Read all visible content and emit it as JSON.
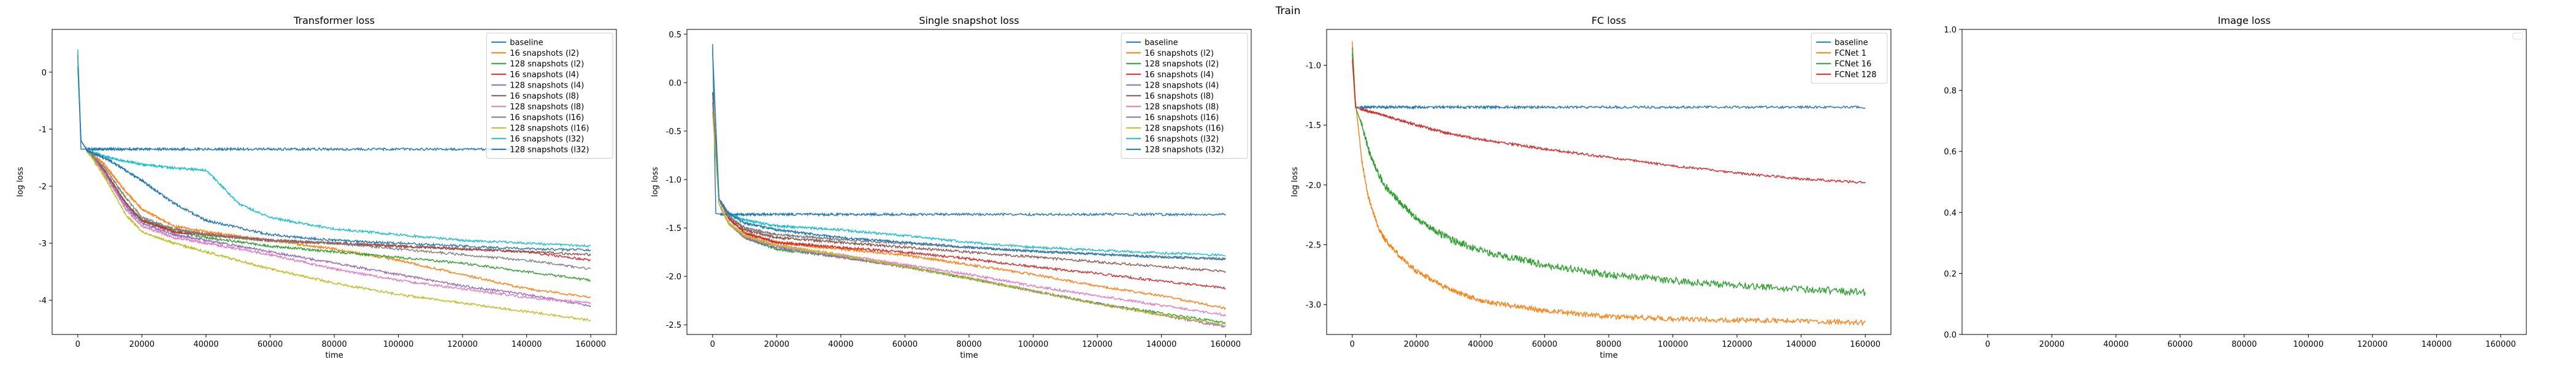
{
  "figure": {
    "suptitle": "Train"
  },
  "chart_data": [
    {
      "type": "line",
      "title": "Transformer loss",
      "xlabel": "time",
      "ylabel": "log loss",
      "xlim": [
        -8000,
        168000
      ],
      "ylim": [
        -4.6,
        0.75
      ],
      "xticks": [
        0,
        20000,
        40000,
        60000,
        80000,
        100000,
        120000,
        140000,
        160000
      ],
      "yticks": [
        -4,
        -3,
        -2,
        -1,
        0
      ],
      "grid": false,
      "legend": "top-right",
      "series": [
        {
          "name": "baseline",
          "color": "#1f77b4",
          "x": [
            0,
            1000,
            3000,
            160000
          ],
          "y": [
            0.3,
            -1.35,
            -1.35,
            -1.35
          ]
        },
        {
          "name": "16 snapshots (l2)",
          "color": "#ff7f0e",
          "x": [
            0,
            1000,
            3000,
            8000,
            15000,
            20000,
            30000,
            40000,
            60000,
            80000,
            100000,
            120000,
            140000,
            160000
          ],
          "y": [
            0.35,
            -1.2,
            -1.38,
            -1.6,
            -2.1,
            -2.4,
            -2.7,
            -2.8,
            -2.95,
            -3.1,
            -3.3,
            -3.55,
            -3.8,
            -3.95
          ]
        },
        {
          "name": "128 snapshots (l2)",
          "color": "#2ca02c",
          "x": [
            0,
            1000,
            3000,
            8000,
            15000,
            20000,
            30000,
            40000,
            60000,
            80000,
            100000,
            120000,
            140000,
            160000
          ],
          "y": [
            0.3,
            -1.2,
            -1.38,
            -1.7,
            -2.3,
            -2.6,
            -2.8,
            -2.9,
            -3.05,
            -3.15,
            -3.25,
            -3.35,
            -3.5,
            -3.65
          ]
        },
        {
          "name": "16 snapshots (l4)",
          "color": "#d62728",
          "x": [
            0,
            1000,
            3000,
            8000,
            15000,
            20000,
            30000,
            40000,
            60000,
            80000,
            100000,
            120000,
            140000,
            160000
          ],
          "y": [
            0.2,
            -1.2,
            -1.38,
            -1.7,
            -2.3,
            -2.6,
            -2.8,
            -2.85,
            -2.95,
            -3.0,
            -3.05,
            -3.1,
            -3.15,
            -3.3
          ]
        },
        {
          "name": "128 snapshots (l4)",
          "color": "#9467bd",
          "x": [
            0,
            1000,
            3000,
            8000,
            15000,
            20000,
            30000,
            40000,
            60000,
            80000,
            100000,
            120000,
            140000,
            160000
          ],
          "y": [
            0.25,
            -1.2,
            -1.38,
            -1.75,
            -2.35,
            -2.65,
            -2.85,
            -2.95,
            -3.15,
            -3.35,
            -3.55,
            -3.75,
            -3.9,
            -4.1
          ]
        },
        {
          "name": "16 snapshots (l8)",
          "color": "#8c564b",
          "x": [
            0,
            1000,
            3000,
            8000,
            15000,
            20000,
            30000,
            40000,
            60000,
            80000,
            100000,
            120000,
            140000,
            160000
          ],
          "y": [
            0.2,
            -1.2,
            -1.38,
            -1.7,
            -2.3,
            -2.6,
            -2.75,
            -2.85,
            -2.95,
            -3.0,
            -3.05,
            -3.1,
            -3.15,
            -3.2
          ]
        },
        {
          "name": "128 snapshots (l8)",
          "color": "#e377c2",
          "x": [
            0,
            1000,
            3000,
            8000,
            15000,
            20000,
            30000,
            40000,
            60000,
            80000,
            100000,
            120000,
            140000,
            160000
          ],
          "y": [
            0.2,
            -1.2,
            -1.38,
            -1.75,
            -2.4,
            -2.7,
            -2.9,
            -3.0,
            -3.2,
            -3.45,
            -3.65,
            -3.8,
            -3.95,
            -4.05
          ]
        },
        {
          "name": "16 snapshots (l16)",
          "color": "#7f7f7f",
          "x": [
            0,
            1000,
            3000,
            8000,
            15000,
            20000,
            30000,
            40000,
            60000,
            80000,
            100000,
            120000,
            140000,
            160000
          ],
          "y": [
            0.2,
            -1.2,
            -1.38,
            -1.65,
            -2.2,
            -2.55,
            -2.75,
            -2.85,
            -2.95,
            -3.0,
            -3.1,
            -3.2,
            -3.3,
            -3.45
          ]
        },
        {
          "name": "128 snapshots (l16)",
          "color": "#bcbd22",
          "x": [
            0,
            1000,
            3000,
            8000,
            15000,
            20000,
            30000,
            40000,
            60000,
            80000,
            100000,
            120000,
            140000,
            160000
          ],
          "y": [
            0.2,
            -1.2,
            -1.38,
            -1.8,
            -2.5,
            -2.8,
            -3.0,
            -3.15,
            -3.45,
            -3.7,
            -3.9,
            -4.05,
            -4.2,
            -4.35
          ]
        },
        {
          "name": "16 snapshots (l32)",
          "color": "#17becf",
          "x": [
            0,
            1000,
            3000,
            10000,
            20000,
            30000,
            40000,
            45000,
            50000,
            60000,
            80000,
            100000,
            120000,
            140000,
            160000
          ],
          "y": [
            0.4,
            -1.2,
            -1.38,
            -1.5,
            -1.62,
            -1.68,
            -1.72,
            -2.0,
            -2.3,
            -2.55,
            -2.75,
            -2.85,
            -2.95,
            -3.0,
            -3.05
          ]
        },
        {
          "name": "128 snapshots (l32)",
          "color": "#1f77b4",
          "x": [
            0,
            1000,
            3000,
            10000,
            20000,
            30000,
            40000,
            60000,
            80000,
            100000,
            120000,
            140000,
            160000
          ],
          "y": [
            0.1,
            -1.2,
            -1.38,
            -1.55,
            -1.9,
            -2.3,
            -2.6,
            -2.85,
            -2.95,
            -3.0,
            -3.05,
            -3.1,
            -3.12
          ]
        }
      ]
    },
    {
      "type": "line",
      "title": "Single snapshot loss",
      "xlabel": "time",
      "ylabel": "log loss",
      "xlim": [
        -8000,
        168000
      ],
      "ylim": [
        -2.6,
        0.55
      ],
      "xticks": [
        0,
        20000,
        40000,
        60000,
        80000,
        100000,
        120000,
        140000,
        160000
      ],
      "yticks": [
        -2.5,
        -2.0,
        -1.5,
        -1.0,
        -0.5,
        0.0,
        0.5
      ],
      "grid": false,
      "legend": "top-right",
      "series": [
        {
          "name": "baseline",
          "color": "#1f77b4",
          "x": [
            0,
            1000,
            3000,
            160000
          ],
          "y": [
            0.4,
            -1.35,
            -1.36,
            -1.36
          ]
        },
        {
          "name": "16 snapshots (l2)",
          "color": "#ff7f0e",
          "x": [
            0,
            2000,
            5000,
            10000,
            20000,
            40000,
            60000,
            80000,
            100000,
            120000,
            140000,
            160000
          ],
          "y": [
            -0.1,
            -1.2,
            -1.4,
            -1.55,
            -1.65,
            -1.72,
            -1.78,
            -1.88,
            -1.98,
            -2.1,
            -2.2,
            -2.33
          ]
        },
        {
          "name": "128 snapshots (l2)",
          "color": "#2ca02c",
          "x": [
            0,
            2000,
            5000,
            10000,
            20000,
            40000,
            60000,
            80000,
            100000,
            120000,
            140000,
            160000
          ],
          "y": [
            -0.2,
            -1.25,
            -1.45,
            -1.6,
            -1.72,
            -1.8,
            -1.9,
            -2.02,
            -2.15,
            -2.28,
            -2.38,
            -2.48
          ]
        },
        {
          "name": "16 snapshots (l4)",
          "color": "#d62728",
          "x": [
            0,
            2000,
            5000,
            10000,
            20000,
            40000,
            60000,
            80000,
            100000,
            120000,
            140000,
            160000
          ],
          "y": [
            -0.1,
            -1.2,
            -1.4,
            -1.55,
            -1.65,
            -1.7,
            -1.75,
            -1.82,
            -1.9,
            -1.97,
            -2.05,
            -2.12
          ]
        },
        {
          "name": "128 snapshots (l4)",
          "color": "#9467bd",
          "x": [
            0,
            2000,
            5000,
            10000,
            20000,
            40000,
            60000,
            80000,
            100000,
            120000,
            140000,
            160000
          ],
          "y": [
            -0.3,
            -1.25,
            -1.45,
            -1.6,
            -1.7,
            -1.8,
            -1.9,
            -2.02,
            -2.15,
            -2.28,
            -2.4,
            -2.52
          ]
        },
        {
          "name": "16 snapshots (l8)",
          "color": "#8c564b",
          "x": [
            0,
            2000,
            5000,
            10000,
            20000,
            40000,
            60000,
            80000,
            100000,
            120000,
            140000,
            160000
          ],
          "y": [
            -0.1,
            -1.2,
            -1.38,
            -1.52,
            -1.6,
            -1.65,
            -1.7,
            -1.75,
            -1.8,
            -1.85,
            -1.9,
            -1.95
          ]
        },
        {
          "name": "128 snapshots (l8)",
          "color": "#e377c2",
          "x": [
            0,
            2000,
            5000,
            10000,
            20000,
            40000,
            60000,
            80000,
            100000,
            120000,
            140000,
            160000
          ],
          "y": [
            -0.2,
            -1.25,
            -1.45,
            -1.58,
            -1.68,
            -1.78,
            -1.88,
            -1.98,
            -2.1,
            -2.2,
            -2.3,
            -2.4
          ]
        },
        {
          "name": "16 snapshots (l16)",
          "color": "#7f7f7f",
          "x": [
            0,
            2000,
            5000,
            10000,
            20000,
            40000,
            60000,
            80000,
            100000,
            120000,
            140000,
            160000
          ],
          "y": [
            -0.2,
            -1.2,
            -1.38,
            -1.5,
            -1.57,
            -1.62,
            -1.66,
            -1.7,
            -1.74,
            -1.77,
            -1.8,
            -1.82
          ]
        },
        {
          "name": "128 snapshots (l16)",
          "color": "#bcbd22",
          "x": [
            0,
            2000,
            5000,
            10000,
            20000,
            40000,
            60000,
            80000,
            100000,
            120000,
            140000,
            160000
          ],
          "y": [
            -0.3,
            -1.25,
            -1.45,
            -1.58,
            -1.68,
            -1.78,
            -1.9,
            -2.02,
            -2.15,
            -2.28,
            -2.4,
            -2.5
          ]
        },
        {
          "name": "16 snapshots (l32)",
          "color": "#17becf",
          "x": [
            0,
            2000,
            5000,
            10000,
            20000,
            40000,
            60000,
            80000,
            100000,
            120000,
            140000,
            160000
          ],
          "y": [
            0.3,
            -1.2,
            -1.35,
            -1.42,
            -1.48,
            -1.52,
            -1.58,
            -1.65,
            -1.7,
            -1.73,
            -1.76,
            -1.78
          ]
        },
        {
          "name": "128 snapshots (l32)",
          "color": "#1f77b4",
          "x": [
            0,
            2000,
            5000,
            10000,
            20000,
            40000,
            60000,
            80000,
            100000,
            120000,
            140000,
            160000
          ],
          "y": [
            0.35,
            -1.2,
            -1.35,
            -1.45,
            -1.52,
            -1.6,
            -1.65,
            -1.7,
            -1.74,
            -1.77,
            -1.8,
            -1.82
          ]
        }
      ]
    },
    {
      "type": "line",
      "title": "FC loss",
      "xlabel": "time",
      "ylabel": "log loss",
      "xlim": [
        -8000,
        168000
      ],
      "ylim": [
        -3.25,
        -0.7
      ],
      "xticks": [
        0,
        20000,
        40000,
        60000,
        80000,
        100000,
        120000,
        140000,
        160000
      ],
      "yticks": [
        -3.0,
        -2.5,
        -2.0,
        -1.5,
        -1.0
      ],
      "grid": false,
      "legend": "top-right",
      "series": [
        {
          "name": "baseline",
          "color": "#1f77b4",
          "x": [
            0,
            1000,
            3000,
            160000
          ],
          "y": [
            -0.9,
            -1.35,
            -1.35,
            -1.35
          ]
        },
        {
          "name": "FCNet 1",
          "color": "#ff7f0e",
          "x": [
            0,
            1000,
            3000,
            5000,
            8000,
            10000,
            15000,
            20000,
            30000,
            40000,
            60000,
            80000,
            100000,
            120000,
            140000,
            160000
          ],
          "y": [
            -0.8,
            -1.3,
            -1.8,
            -2.1,
            -2.35,
            -2.45,
            -2.6,
            -2.72,
            -2.87,
            -2.97,
            -3.05,
            -3.1,
            -3.12,
            -3.13,
            -3.14,
            -3.15
          ]
        },
        {
          "name": "FCNet 16",
          "color": "#2ca02c",
          "x": [
            0,
            1000,
            3000,
            5000,
            8000,
            10000,
            15000,
            20000,
            30000,
            40000,
            60000,
            80000,
            100000,
            120000,
            140000,
            160000
          ],
          "y": [
            -0.85,
            -1.35,
            -1.5,
            -1.7,
            -1.9,
            -2.0,
            -2.15,
            -2.28,
            -2.45,
            -2.55,
            -2.67,
            -2.75,
            -2.8,
            -2.84,
            -2.87,
            -2.9
          ]
        },
        {
          "name": "FCNet 128",
          "color": "#d62728",
          "x": [
            0,
            1000,
            3000,
            10000,
            20000,
            30000,
            40000,
            60000,
            80000,
            100000,
            120000,
            140000,
            160000
          ],
          "y": [
            -0.95,
            -1.35,
            -1.37,
            -1.42,
            -1.5,
            -1.57,
            -1.62,
            -1.7,
            -1.77,
            -1.84,
            -1.9,
            -1.95,
            -1.98
          ]
        }
      ]
    },
    {
      "type": "line",
      "title": "Image loss",
      "xlabel": "",
      "ylabel": "",
      "xlim": [
        -8000,
        168000
      ],
      "ylim": [
        0,
        1
      ],
      "xticks": [
        0,
        20000,
        40000,
        60000,
        80000,
        100000,
        120000,
        140000,
        160000
      ],
      "yticks": [
        0.0,
        0.2,
        0.4,
        0.6,
        0.8,
        1.0
      ],
      "grid": false,
      "legend": "top-right",
      "series": []
    }
  ]
}
